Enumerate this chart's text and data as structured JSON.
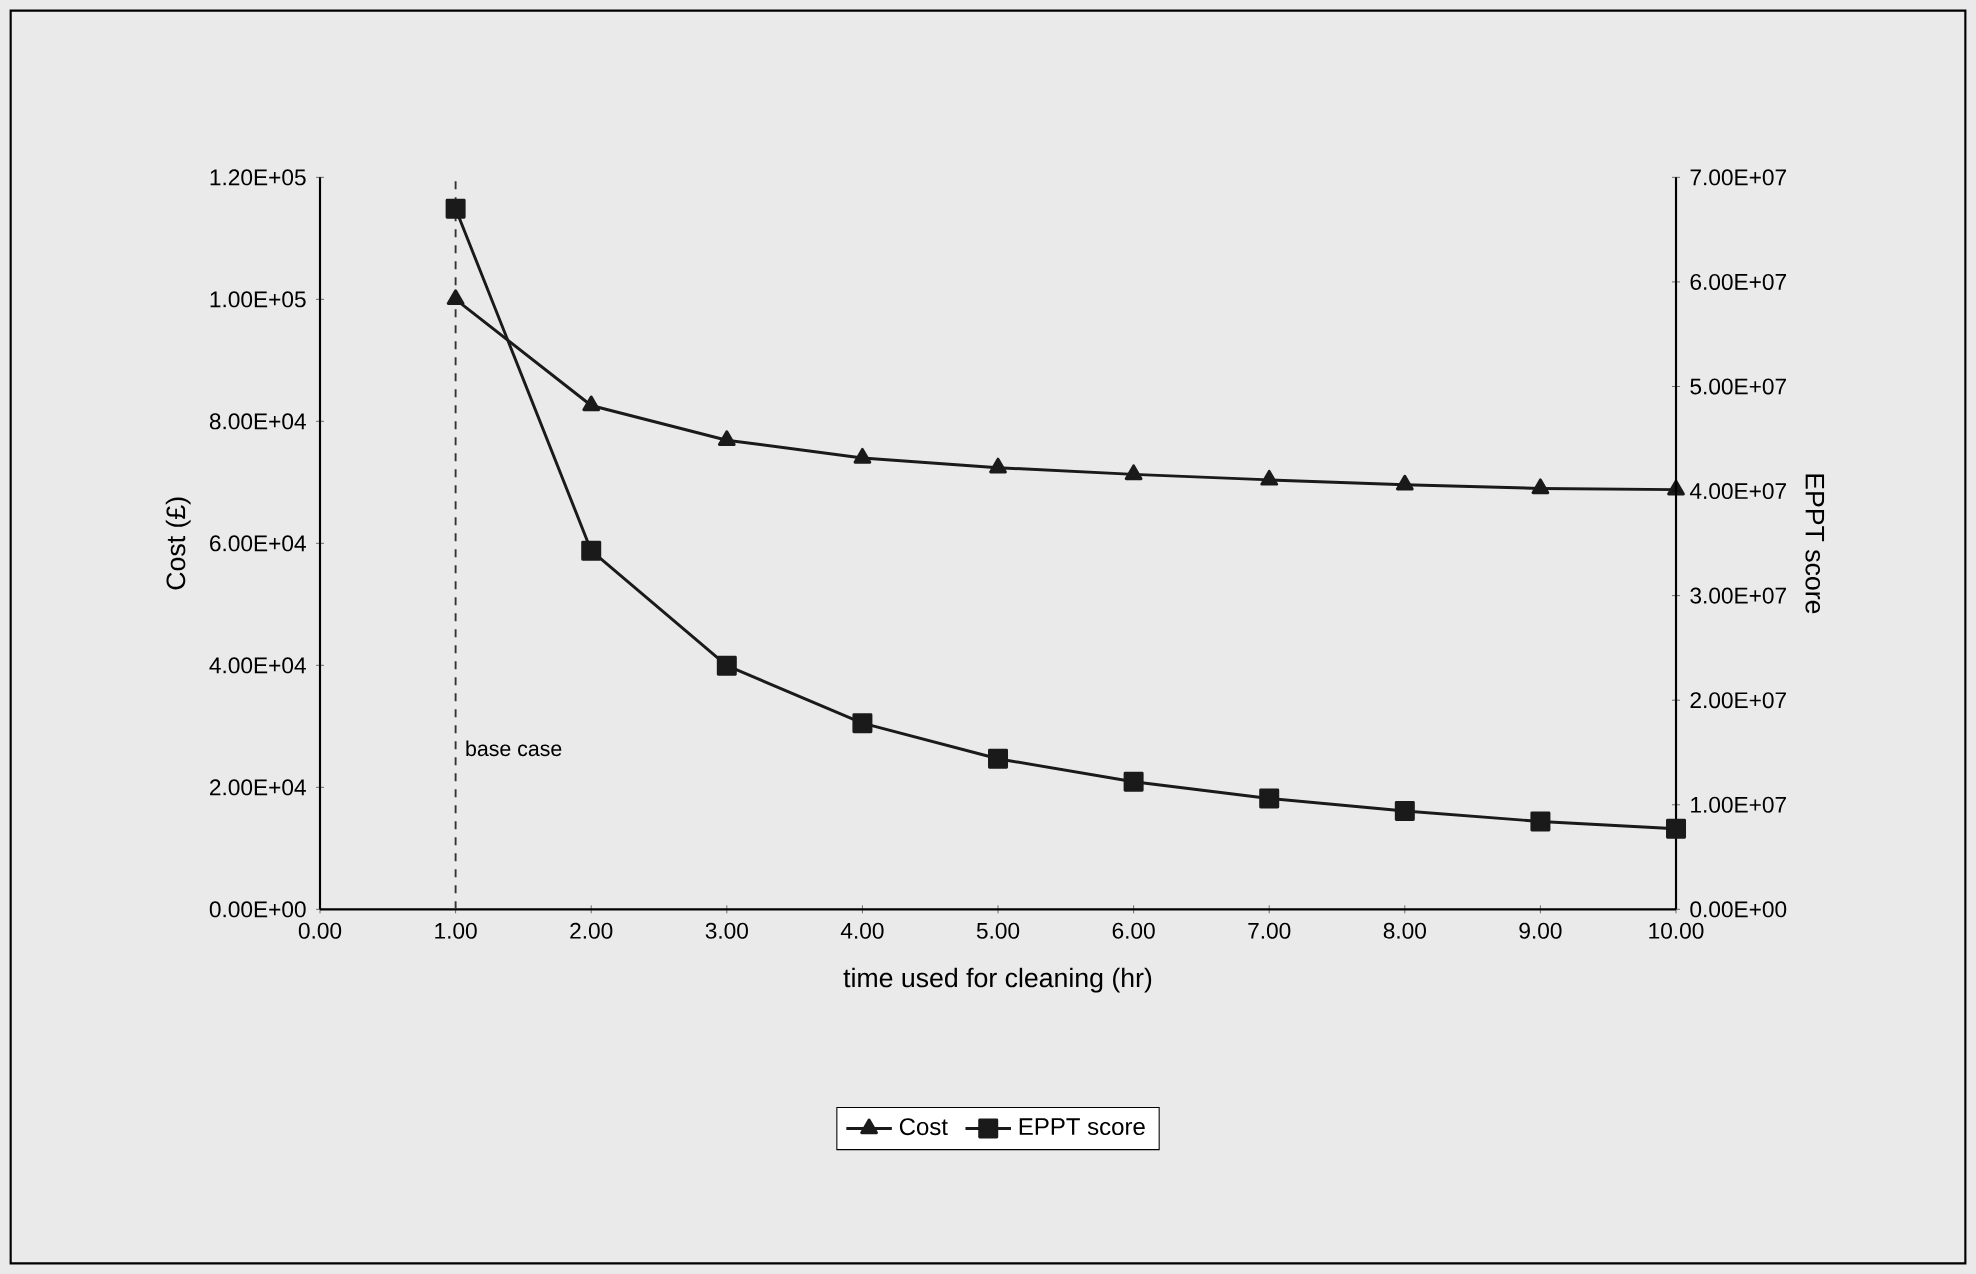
{
  "chart_data": {
    "type": "line",
    "xlabel": "time used for cleaning (hr)",
    "ylabel": "Cost (£)",
    "y2label": "EPPT score",
    "x": [
      1,
      2,
      3,
      4,
      5,
      6,
      7,
      8,
      9,
      10
    ],
    "series": [
      {
        "name": "Cost",
        "color": "#1a1a1a",
        "marker": "triangle",
        "values": [
          100000,
          82600,
          76900,
          74000,
          72400,
          71300,
          70400,
          69600,
          69000,
          68800
        ]
      },
      {
        "name": "EPPT score",
        "color": "#1a1a1a",
        "marker": "square",
        "axis": "y2",
        "values": [
          67000000,
          34300000,
          23300000,
          17800000,
          14400000,
          12200000,
          10600000,
          9400000,
          8400000,
          7700000
        ]
      }
    ],
    "xlim": [
      0,
      10
    ],
    "xticks": [
      {
        "value": 0,
        "label": "0.00"
      },
      {
        "value": 1,
        "label": "1.00"
      },
      {
        "value": 2,
        "label": "2.00"
      },
      {
        "value": 3,
        "label": "3.00"
      },
      {
        "value": 4,
        "label": "4.00"
      },
      {
        "value": 5,
        "label": "5.00"
      },
      {
        "value": 6,
        "label": "6.00"
      },
      {
        "value": 7,
        "label": "7.00"
      },
      {
        "value": 8,
        "label": "8.00"
      },
      {
        "value": 9,
        "label": "9.00"
      },
      {
        "value": 10,
        "label": "10.00"
      }
    ],
    "ylim": [
      0,
      120000
    ],
    "yticks": [
      {
        "value": 0,
        "label": "0.00E+00"
      },
      {
        "value": 20000,
        "label": "2.00E+04"
      },
      {
        "value": 40000,
        "label": "4.00E+04"
      },
      {
        "value": 60000,
        "label": "6.00E+04"
      },
      {
        "value": 80000,
        "label": "8.00E+04"
      },
      {
        "value": 100000,
        "label": "1.00E+05"
      },
      {
        "value": 120000,
        "label": "1.20E+05"
      }
    ],
    "y2lim": [
      0,
      70000000
    ],
    "y2ticks": [
      {
        "value": 0,
        "label": "0.00E+00"
      },
      {
        "value": 10000000,
        "label": "1.00E+07"
      },
      {
        "value": 20000000,
        "label": "2.00E+07"
      },
      {
        "value": 30000000,
        "label": "3.00E+07"
      },
      {
        "value": 40000000,
        "label": "4.00E+07"
      },
      {
        "value": 50000000,
        "label": "5.00E+07"
      },
      {
        "value": 60000000,
        "label": "6.00E+07"
      },
      {
        "value": 70000000,
        "label": "7.00E+07"
      }
    ],
    "ref_lines": [
      {
        "axis": "x",
        "value": 1,
        "label": "base case",
        "line_style": "dashed",
        "color": "#333333"
      }
    ],
    "legend": "bottom",
    "grid": false,
    "line_style": "solid"
  }
}
